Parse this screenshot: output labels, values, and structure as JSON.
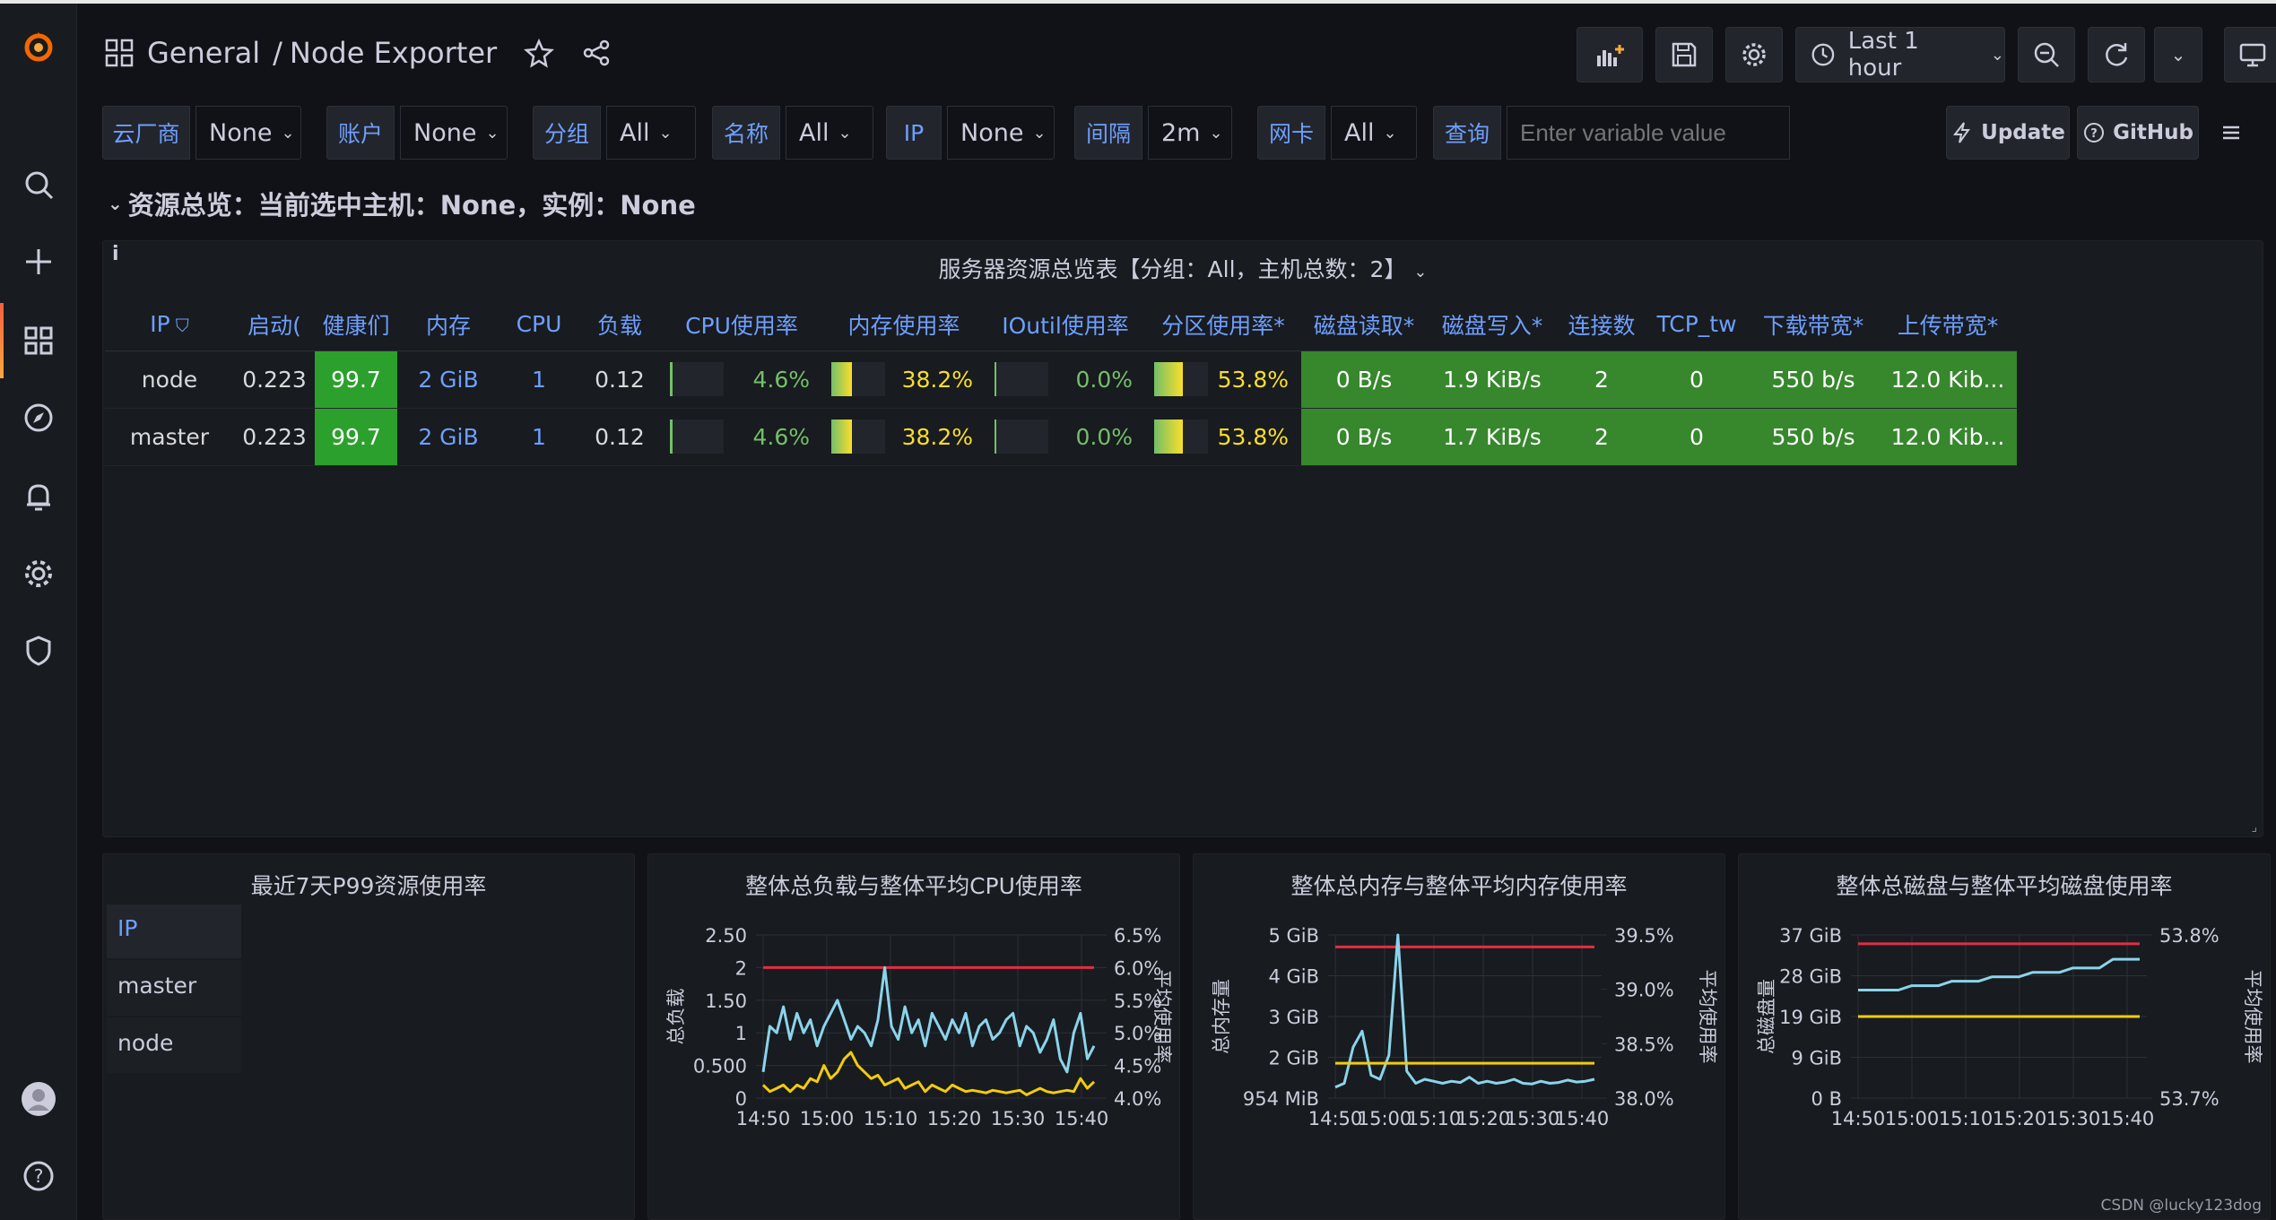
{
  "breadcrumb": {
    "folder": "General",
    "separator": "/",
    "dashboard": "Node Exporter"
  },
  "toolbar": {
    "time_range": "Last 1 hour"
  },
  "variables": [
    {
      "label": "云厂商",
      "value": "None"
    },
    {
      "label": "账户",
      "value": "None"
    },
    {
      "label": "分组",
      "value": "All"
    },
    {
      "label": "名称",
      "value": "All"
    },
    {
      "label": "IP",
      "value": "None"
    },
    {
      "label": "间隔",
      "value": "2m"
    },
    {
      "label": "网卡",
      "value": "All"
    },
    {
      "label": "查询",
      "value": "",
      "placeholder": "Enter variable value"
    }
  ],
  "links": {
    "update": "Update",
    "github": "GitHub"
  },
  "row_title": "资源总览：当前选中主机：None，实例：None",
  "table_panel": {
    "title": "服务器资源总览表【分组：All，主机总数：2】",
    "info": "i",
    "columns": [
      "IP",
      "启动(",
      "健康们",
      "内存",
      "CPU",
      "负载",
      "CPU使用率",
      "内存使用率",
      "IOutil使用率",
      "分区使用率*",
      "磁盘读取*",
      "磁盘写入*",
      "连接数",
      "TCP_tw",
      "下载带宽*",
      "上传带宽*"
    ],
    "rows": [
      {
        "ip": "node",
        "uptime": "0.223",
        "health": "99.7",
        "mem": "2 GiB",
        "cpu": "1",
        "load": "0.12",
        "cpu_pct": "4.6%",
        "cpu_frac": 0.046,
        "mem_pct": "38.2%",
        "mem_frac": 0.382,
        "io_pct": "0.0%",
        "io_frac": 0.0,
        "part_pct": "53.8%",
        "part_frac": 0.538,
        "disk_read": "0 B/s",
        "disk_write": "1.9 KiB/s",
        "conns": "2",
        "tcp_tw": "0",
        "down": "550 b/s",
        "up": "12.0 Kib..."
      },
      {
        "ip": "master",
        "uptime": "0.223",
        "health": "99.7",
        "mem": "2 GiB",
        "cpu": "1",
        "load": "0.12",
        "cpu_pct": "4.6%",
        "cpu_frac": 0.046,
        "mem_pct": "38.2%",
        "mem_frac": 0.382,
        "io_pct": "0.0%",
        "io_frac": 0.0,
        "part_pct": "53.8%",
        "part_frac": 0.538,
        "disk_read": "0 B/s",
        "disk_write": "1.7 KiB/s",
        "conns": "2",
        "tcp_tw": "0",
        "down": "550 b/s",
        "up": "12.0 Kib..."
      }
    ]
  },
  "p99_panel": {
    "title": "最近7天P99资源使用率",
    "header": "IP",
    "items": [
      "master",
      "node"
    ]
  },
  "chart_data": [
    {
      "type": "line",
      "title": "整体总负载与整体平均CPU使用率",
      "ylabel": "总负载",
      "y2label": "平均使用率",
      "x_ticks": [
        "14:50",
        "15:00",
        "15:10",
        "15:20",
        "15:30",
        "15:40"
      ],
      "y_ticks": [
        "0",
        "0.500",
        "1",
        "1.50",
        "2",
        "2.50"
      ],
      "y2_ticks": [
        "4.0%",
        "4.5%",
        "5.0%",
        "5.5%",
        "6.0%",
        "6.5%"
      ],
      "ylim": [
        0,
        2.5
      ],
      "threshold": 2,
      "series": [
        {
          "color": "#8ad4eb",
          "values": [
            0.4,
            1.1,
            1.0,
            1.4,
            0.9,
            1.3,
            1.0,
            1.2,
            0.8,
            1.1,
            1.3,
            1.5,
            1.2,
            0.9,
            1.1,
            1.0,
            0.8,
            1.2,
            2.0,
            1.1,
            0.9,
            1.4,
            1.0,
            1.2,
            0.8,
            1.3,
            1.1,
            0.9,
            1.2,
            1.0,
            1.3,
            0.8,
            1.1,
            1.2,
            0.9,
            1.0,
            1.2,
            1.3,
            0.8,
            1.1,
            1.0,
            0.7,
            0.9,
            1.2,
            0.6,
            0.4,
            1.0,
            1.3,
            0.6,
            0.8
          ]
        },
        {
          "color": "#f2cc0c",
          "values": [
            0.2,
            0.1,
            0.15,
            0.2,
            0.1,
            0.2,
            0.15,
            0.3,
            0.25,
            0.5,
            0.3,
            0.4,
            0.6,
            0.7,
            0.5,
            0.4,
            0.3,
            0.35,
            0.2,
            0.25,
            0.3,
            0.15,
            0.2,
            0.25,
            0.1,
            0.2,
            0.15,
            0.1,
            0.2,
            0.15,
            0.1,
            0.12,
            0.1,
            0.08,
            0.12,
            0.1,
            0.08,
            0.1,
            0.12,
            0.05,
            0.1,
            0.15,
            0.1,
            0.08,
            0.1,
            0.12,
            0.1,
            0.3,
            0.15,
            0.25
          ]
        }
      ]
    },
    {
      "type": "line",
      "title": "整体总内存与整体平均内存使用率",
      "ylabel": "总内存量",
      "y2label": "平均使用率",
      "x_ticks": [
        "14:50",
        "15:00",
        "15:10",
        "15:20",
        "15:30",
        "15:40"
      ],
      "y_ticks": [
        "954 MiB",
        "2 GiB",
        "3 GiB",
        "4 GiB",
        "5 GiB"
      ],
      "y2_ticks": [
        "38.0%",
        "38.5%",
        "39.0%",
        "39.5%"
      ],
      "threshold": 4.7,
      "series": [
        {
          "color": "#8ad4eb",
          "values": [
            1.2,
            1.3,
            2.2,
            2.6,
            1.5,
            1.4,
            2.0,
            5.0,
            1.6,
            1.3,
            1.4,
            1.35,
            1.3,
            1.35,
            1.32,
            1.45,
            1.3,
            1.35,
            1.3,
            1.33,
            1.4,
            1.3,
            1.28,
            1.35,
            1.3,
            1.32,
            1.38,
            1.33,
            1.35,
            1.4
          ]
        },
        {
          "color": "#f2cc0c",
          "values": [
            1.8,
            1.8,
            1.8,
            1.8,
            1.8,
            1.8,
            1.8,
            1.8,
            1.8,
            1.8,
            1.8,
            1.8,
            1.8,
            1.8,
            1.8,
            1.8,
            1.8,
            1.8,
            1.8,
            1.8,
            1.8,
            1.8,
            1.8,
            1.8,
            1.8,
            1.8,
            1.8,
            1.8,
            1.8,
            1.8
          ]
        }
      ]
    },
    {
      "type": "line",
      "title": "整体总磁盘与整体平均磁盘使用率",
      "ylabel": "总磁盘量",
      "y2label": "平均使用率",
      "x_ticks": [
        "14:50",
        "15:00",
        "15:10",
        "15:20",
        "15:30",
        "15:40"
      ],
      "y_ticks": [
        "0 B",
        "9 GiB",
        "19 GiB",
        "28 GiB",
        "37 GiB"
      ],
      "y2_ticks": [
        "53.7%",
        "53.8%"
      ],
      "threshold": 35,
      "series": [
        {
          "color": "#8ad4eb",
          "values": [
            24.5,
            24.5,
            24.5,
            24.5,
            25.5,
            25.5,
            25.5,
            26.5,
            26.5,
            26.5,
            27.5,
            27.5,
            27.5,
            28.5,
            28.5,
            28.5,
            29.5,
            29.5,
            29.5,
            31.5,
            31.5,
            31.5
          ]
        },
        {
          "color": "#f2cc0c",
          "values": [
            18.5,
            18.5,
            18.5,
            18.5,
            18.5,
            18.5,
            18.5,
            18.5,
            18.5,
            18.5,
            18.5,
            18.5,
            18.5,
            18.5,
            18.5,
            18.5,
            18.5,
            18.5,
            18.5,
            18.5,
            18.5,
            18.5
          ]
        }
      ]
    }
  ],
  "watermark": "CSDN @lucky123dog"
}
